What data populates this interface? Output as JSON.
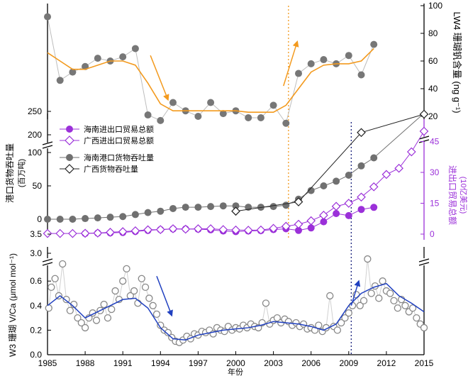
{
  "chart_data": [
    {
      "type": "line",
      "panel": "top",
      "xlim": [
        1985,
        2015
      ],
      "ylim": [
        10,
        100
      ],
      "y_axis_side": "right",
      "ylabel": "LW4 珊瑚钒含量 (ng g⁻¹)",
      "yticks": [
        20,
        40,
        60,
        80,
        100
      ],
      "series": [
        {
          "kind": "raw-points",
          "color": "#777777",
          "x": [
            1985,
            1986,
            1987,
            1988,
            1989,
            1990,
            1991,
            1992,
            1993,
            1994,
            1995,
            1996,
            1997,
            1998,
            1999,
            2000,
            2001,
            2002,
            2003,
            2004,
            2005,
            2006,
            2007,
            2008,
            2009,
            2010,
            2011
          ],
          "y": [
            92,
            46,
            52,
            56,
            62,
            60,
            63,
            69,
            21,
            17,
            30,
            24,
            20,
            30,
            22,
            24,
            19,
            19,
            28,
            15,
            51,
            58,
            61,
            58,
            64,
            50,
            72
          ]
        },
        {
          "kind": "smooth",
          "color": "#F39A1E",
          "x": [
            1985,
            1986,
            1987,
            1988,
            1989,
            1990,
            1991,
            1992,
            1993,
            1994,
            1995,
            1996,
            1997,
            1998,
            1999,
            2000,
            2001,
            2002,
            2003,
            2004,
            2005,
            2006,
            2007,
            2008,
            2009,
            2010,
            2011
          ],
          "y": [
            66,
            60,
            54,
            54,
            57,
            60,
            60,
            57,
            44,
            29,
            24,
            24,
            24,
            24,
            24,
            24,
            23,
            23,
            23,
            28,
            40,
            52,
            57,
            58,
            58,
            60,
            69
          ]
        }
      ],
      "arrows": [
        {
          "direction": "down",
          "color": "#F39A1E",
          "from": [
            1993.2,
            64
          ],
          "to": [
            1994.6,
            32
          ]
        },
        {
          "direction": "up",
          "color": "#F39A1E",
          "from": [
            2003.8,
            42
          ],
          "to": [
            2004.9,
            74
          ]
        }
      ]
    },
    {
      "type": "line",
      "panel": "middle",
      "xlim": [
        1985,
        2015
      ],
      "y_left": {
        "label": "港口货物吞吐量",
        "sublabel": "(百万吨)",
        "ticks_lower": [
          0,
          50,
          100
        ],
        "ticks_upper": [
          200,
          250
        ]
      },
      "y_right": {
        "label": "进出口贸易总额",
        "sublabel": "(10亿美元)",
        "ticks": [
          0,
          15,
          30,
          45
        ],
        "color": "#9B30D9"
      },
      "legend": [
        "海南进出口贸易总额",
        "广西进出口贸易总额",
        "海南港口货物吞吐量",
        "广西货物吞吐量"
      ],
      "series": [
        {
          "name": "海南进出口贸易总额",
          "axis": "right",
          "marker": "filled-circle",
          "color": "#9B30D9",
          "x": [
            1988,
            1989,
            1990,
            1991,
            1992,
            1993,
            1994,
            1995,
            1996,
            1997,
            1998,
            1999,
            2000,
            2001,
            2002,
            2003,
            2004,
            2005,
            2006,
            2007,
            2008,
            2009,
            2010,
            2011
          ],
          "y": [
            0.3,
            0.5,
            0.6,
            0.8,
            1.3,
            1.8,
            2.2,
            2.5,
            2.5,
            2.4,
            2.1,
            1.5,
            1.2,
            1.5,
            1.7,
            2.2,
            2.6,
            1.8,
            3.0,
            6.0,
            10.0,
            9.0,
            12.0,
            13.0
          ]
        },
        {
          "name": "广西进出口贸易总额",
          "axis": "right",
          "marker": "open-diamond",
          "color": "#9B30D9",
          "x": [
            1985,
            1986,
            1987,
            1988,
            1989,
            1990,
            1991,
            1992,
            1993,
            1994,
            1995,
            1996,
            1997,
            1998,
            1999,
            2000,
            2001,
            2002,
            2003,
            2004,
            2005,
            2006,
            2007,
            2008,
            2009,
            2010,
            2011,
            2012,
            2013,
            2014,
            2015
          ],
          "y": [
            0.3,
            0.3,
            0.3,
            0.4,
            0.5,
            0.9,
            1.2,
            1.6,
            2.1,
            2.2,
            2.6,
            2.4,
            2.6,
            2.6,
            2.2,
            2.0,
            1.9,
            2.0,
            2.8,
            3.8,
            4.8,
            6.5,
            9.2,
            13.5,
            15.0,
            18.0,
            23.0,
            29.0,
            32.0,
            40.0,
            50.0
          ]
        },
        {
          "name": "海南港口货物吞吐量",
          "axis": "left",
          "marker": "filled-circle",
          "color": "#707070",
          "x": [
            1985,
            1986,
            1987,
            1988,
            1989,
            1990,
            1991,
            1992,
            1993,
            1994,
            1995,
            1996,
            1997,
            1998,
            1999,
            2000,
            2001,
            2002,
            2003,
            2004,
            2005,
            2006,
            2007,
            2008,
            2009,
            2010,
            2011,
            2015
          ],
          "y": [
            0,
            0,
            0,
            1,
            2,
            3,
            4,
            7,
            10,
            12,
            16,
            18,
            18,
            19,
            20,
            20,
            18,
            18,
            19,
            21,
            30,
            43,
            50,
            57,
            66,
            80,
            92,
            246
          ]
        },
        {
          "name": "广西货物吞吐量",
          "axis": "left",
          "marker": "open-diamond",
          "color": "#222222",
          "x": [
            2000,
            2005,
            2010,
            2015
          ],
          "y": [
            12,
            26,
            130,
            244
          ]
        }
      ]
    },
    {
      "type": "scatter",
      "panel": "bottom",
      "xlim": [
        1985,
        2015
      ],
      "ylim": [
        0.0,
        0.8
      ],
      "xlabel": "年份",
      "ylabel": "W3 珊瑚 V/Ca (μmol mol⁻¹)",
      "yticks": [
        0.0,
        0.2,
        0.4,
        0.6
      ],
      "break_ticks": [
        3.0,
        3.5
      ],
      "xticks": [
        1985,
        1988,
        1991,
        1994,
        1997,
        2000,
        2003,
        2006,
        2009,
        2012,
        2015
      ],
      "smooth_line": {
        "color": "#2040C0",
        "x": [
          1985,
          1986,
          1987,
          1988,
          1989,
          1990,
          1991,
          1992,
          1993,
          1994,
          1995,
          1996,
          1997,
          1998,
          1999,
          2000,
          2001,
          2002,
          2003,
          2004,
          2005,
          2006,
          2007,
          2008,
          2009,
          2010,
          2011,
          2012,
          2013,
          2014,
          2015
        ],
        "y": [
          0.4,
          0.48,
          0.4,
          0.3,
          0.35,
          0.4,
          0.45,
          0.46,
          0.38,
          0.22,
          0.13,
          0.12,
          0.16,
          0.18,
          0.2,
          0.21,
          0.22,
          0.24,
          0.27,
          0.26,
          0.25,
          0.23,
          0.2,
          0.25,
          0.4,
          0.5,
          0.55,
          0.58,
          0.48,
          0.42,
          0.35
        ]
      },
      "raw_points": {
        "color": "#888888",
        "x": [
          1985.1,
          1985.3,
          1985.6,
          1985.9,
          1986.2,
          1986.5,
          1986.8,
          1987.1,
          1987.4,
          1987.7,
          1988.0,
          1988.3,
          1988.6,
          1988.9,
          1989.2,
          1989.5,
          1989.8,
          1990.1,
          1990.4,
          1990.7,
          1991.0,
          1991.3,
          1991.6,
          1991.9,
          1992.2,
          1992.5,
          1992.8,
          1993.1,
          1993.4,
          1993.7,
          1994.0,
          1994.3,
          1994.6,
          1994.9,
          1995.2,
          1995.5,
          1995.8,
          1996.1,
          1996.4,
          1996.7,
          1997.0,
          1997.3,
          1997.6,
          1997.9,
          1998.2,
          1998.5,
          1998.8,
          1999.1,
          1999.4,
          1999.7,
          2000.0,
          2000.3,
          2000.6,
          2000.9,
          2001.2,
          2001.5,
          2001.8,
          2002.1,
          2002.4,
          2002.7,
          2003.0,
          2003.3,
          2003.6,
          2003.9,
          2004.2,
          2004.5,
          2004.8,
          2005.1,
          2005.4,
          2005.7,
          2006.0,
          2006.3,
          2006.6,
          2006.9,
          2007.2,
          2007.5,
          2007.8,
          2008.1,
          2008.4,
          2008.7,
          2009.0,
          2009.3,
          2009.6,
          2009.9,
          2010.2,
          2010.5,
          2010.8,
          2011.1,
          2011.4,
          2011.7,
          2012.0,
          2012.3,
          2012.6,
          2012.9,
          2013.2,
          2013.5,
          2013.8,
          2014.1,
          2014.4,
          2014.7,
          2015.0
        ],
        "y": [
          0.38,
          0.55,
          0.62,
          0.48,
          0.74,
          0.45,
          0.36,
          0.41,
          0.3,
          0.26,
          0.22,
          0.3,
          0.34,
          0.28,
          0.36,
          0.41,
          0.3,
          0.37,
          0.52,
          0.45,
          0.6,
          0.7,
          0.48,
          0.52,
          0.42,
          0.62,
          0.55,
          0.46,
          0.4,
          0.33,
          0.24,
          0.2,
          0.18,
          0.14,
          0.11,
          0.1,
          0.12,
          0.15,
          0.13,
          0.17,
          0.16,
          0.19,
          0.18,
          0.2,
          0.17,
          0.22,
          0.2,
          0.19,
          0.23,
          0.2,
          0.22,
          0.21,
          0.24,
          0.22,
          0.25,
          0.23,
          0.22,
          0.26,
          0.42,
          0.25,
          0.28,
          0.3,
          0.26,
          0.29,
          0.27,
          0.24,
          0.26,
          0.23,
          0.25,
          0.21,
          0.22,
          0.2,
          0.24,
          0.19,
          0.22,
          0.48,
          0.23,
          0.2,
          0.26,
          0.3,
          0.34,
          0.4,
          0.49,
          0.4,
          0.44,
          0.78,
          0.5,
          0.56,
          0.46,
          0.6,
          0.52,
          0.5,
          0.44,
          0.38,
          0.45,
          0.4,
          0.35,
          0.38,
          0.3,
          0.25,
          0.22
        ]
      },
      "arrows": [
        {
          "direction": "down",
          "color": "#2040C0",
          "from": [
            1993.7,
            0.64
          ],
          "to": [
            1994.9,
            0.32
          ]
        },
        {
          "direction": "up",
          "color": "#2040C0",
          "from": [
            2009.2,
            0.4
          ],
          "to": [
            2009.8,
            0.6
          ]
        }
      ]
    }
  ],
  "reference_lines": [
    {
      "x": 2004.2,
      "color": "#F39A1E",
      "style": "dotted",
      "from_panel": "top",
      "to_panel": "middle"
    },
    {
      "x": 2009.2,
      "color": "#1A237E",
      "style": "dotted",
      "from_panel": "middle",
      "to_panel": "bottom"
    }
  ]
}
